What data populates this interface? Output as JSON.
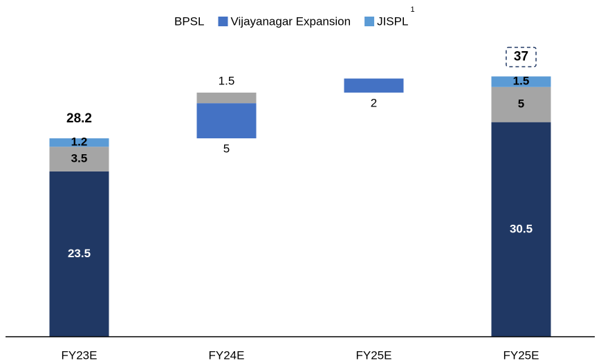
{
  "chart_data": {
    "type": "waterfall",
    "categories": [
      "FY23E",
      "FY24E",
      "FY25E",
      "FY25E"
    ],
    "series": [
      {
        "name": "BPSL",
        "color": "#203864",
        "values": [
          23.5,
          null,
          null,
          30.5
        ]
      },
      {
        "name": "Vijayanagar Expansion",
        "color": "#4472c4",
        "values": [
          null,
          5.0,
          2.0,
          null
        ]
      },
      {
        "color": "#a5a5a5",
        "values": [
          3.5,
          1.5,
          null,
          5.0
        ]
      },
      {
        "name": "JISPL",
        "name_superscript": "1",
        "color": "#5b9bd5",
        "values": [
          1.2,
          null,
          null,
          1.5
        ]
      }
    ],
    "totals": [
      28.2,
      null,
      null,
      37.0
    ],
    "ylim": [
      0,
      40
    ]
  }
}
